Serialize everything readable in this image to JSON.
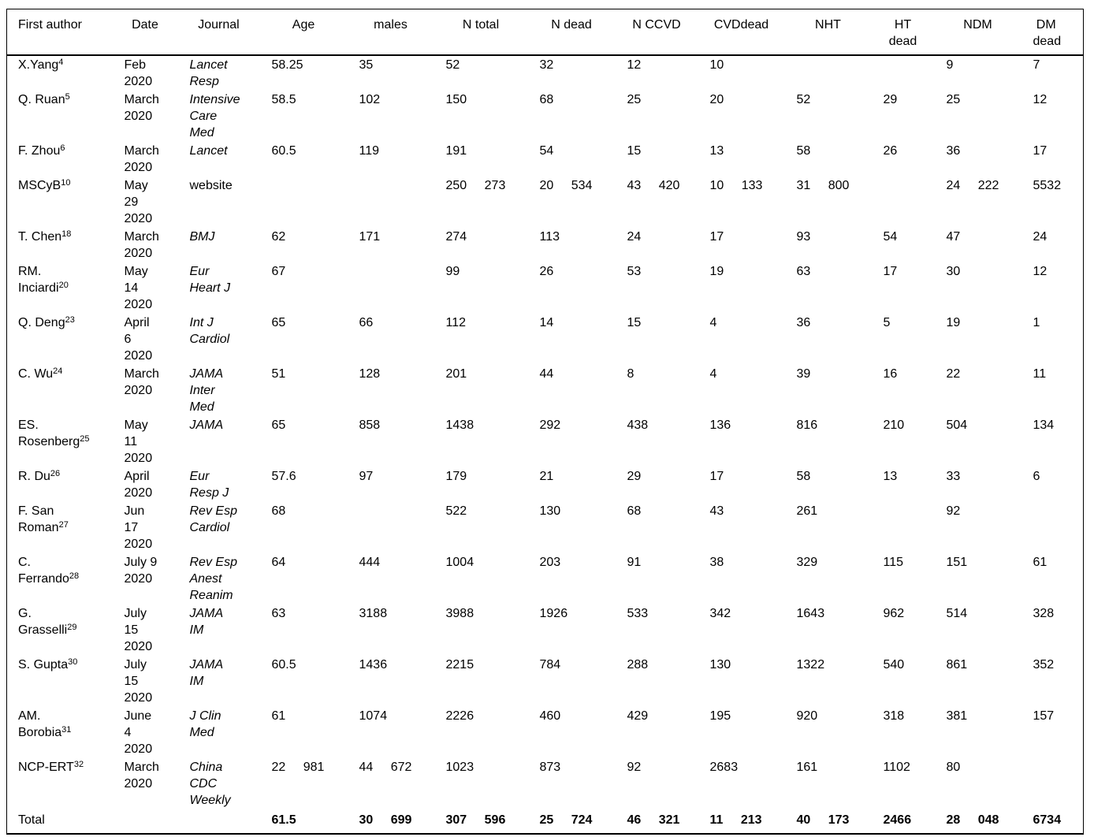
{
  "table": {
    "columns": [
      {
        "key": "author",
        "label": "First author"
      },
      {
        "key": "date",
        "label": "Date"
      },
      {
        "key": "journal",
        "label": "Journal"
      },
      {
        "key": "age",
        "label": "Age"
      },
      {
        "key": "males",
        "label": "males"
      },
      {
        "key": "n_total",
        "label": "N total"
      },
      {
        "key": "n_dead",
        "label": "N dead"
      },
      {
        "key": "n_ccvd",
        "label": "N CCVD"
      },
      {
        "key": "cvd_dead",
        "label": "CVDdead"
      },
      {
        "key": "nht",
        "label": "NHT"
      },
      {
        "key": "ht_dead",
        "label": "HT\ndead"
      },
      {
        "key": "ndm",
        "label": "NDM"
      },
      {
        "key": "dm_dead",
        "label": "DM\ndead"
      }
    ],
    "rows": [
      {
        "author": {
          "name": "X.Yang",
          "ref": "4"
        },
        "date": "Feb\n2020",
        "journal": {
          "text": "Lancet\nResp",
          "italic": true
        },
        "values": [
          "58.25",
          "35",
          "52",
          "32",
          "12",
          "10",
          "",
          "",
          "9",
          "7"
        ]
      },
      {
        "author": {
          "name": "Q. Ruan",
          "ref": "5"
        },
        "date": "March\n2020",
        "journal": {
          "text": "Intensive\nCare\nMed",
          "italic": true
        },
        "values": [
          "58.5",
          "102",
          "150",
          "68",
          "25",
          "20",
          "52",
          "29",
          "25",
          "12"
        ]
      },
      {
        "author": {
          "name": "F. Zhou",
          "ref": "6"
        },
        "date": "March\n2020",
        "journal": {
          "text": "Lancet",
          "italic": true
        },
        "values": [
          "60.5",
          "119",
          "191",
          "54",
          "15",
          "13",
          "58",
          "26",
          "36",
          "17"
        ]
      },
      {
        "author": {
          "name": "MSCyB",
          "ref": "10"
        },
        "date": "May\n29\n2020",
        "journal": {
          "text": "website",
          "italic": false
        },
        "values": [
          "",
          "",
          "250 273",
          "20 534",
          "43 420",
          "10 133",
          "31 800",
          "",
          "24 222",
          "5532"
        ]
      },
      {
        "author": {
          "name": "T. Chen",
          "ref": "18"
        },
        "date": "March\n2020",
        "journal": {
          "text": "BMJ",
          "italic": true
        },
        "values": [
          "62",
          "171",
          "274",
          "113",
          "24",
          "17",
          "93",
          "54",
          "47",
          "24"
        ]
      },
      {
        "author": {
          "name": "RM.\nInciardi",
          "ref": "20"
        },
        "date": "May\n14\n2020",
        "journal": {
          "text": "Eur\nHeart J",
          "italic": true
        },
        "values": [
          "67",
          "",
          "99",
          "26",
          "53",
          "19",
          "63",
          "17",
          "30",
          "12"
        ]
      },
      {
        "author": {
          "name": "Q. Deng",
          "ref": "23"
        },
        "date": "April\n6\n2020",
        "journal": {
          "text": "Int J\nCardiol",
          "italic": true
        },
        "values": [
          "65",
          "66",
          "112",
          "14",
          "15",
          "4",
          "36",
          "5",
          "19",
          "1"
        ]
      },
      {
        "author": {
          "name": "C. Wu",
          "ref": "24"
        },
        "date": "March\n2020",
        "journal": {
          "text": "JAMA\nInter\nMed",
          "italic": true
        },
        "values": [
          "51",
          "128",
          "201",
          "44",
          "8",
          "4",
          "39",
          "16",
          "22",
          "11"
        ]
      },
      {
        "author": {
          "name": "ES.\nRosenberg",
          "ref": "25"
        },
        "date": "May\n11\n2020",
        "journal": {
          "text": "JAMA",
          "italic": true
        },
        "values": [
          "65",
          "858",
          "1438",
          "292",
          "438",
          "136",
          "816",
          "210",
          "504",
          "134"
        ]
      },
      {
        "author": {
          "name": "R. Du",
          "ref": "26"
        },
        "date": "April\n2020",
        "journal": {
          "text": "Eur\nResp J",
          "italic": true
        },
        "values": [
          "57.6",
          "97",
          "179",
          "21",
          "29",
          "17",
          "58",
          "13",
          "33",
          "6"
        ]
      },
      {
        "author": {
          "name": "F. San\nRoman",
          "ref": "27"
        },
        "date": "Jun\n17\n2020",
        "journal": {
          "text": "Rev Esp\nCardiol",
          "italic": true
        },
        "values": [
          "68",
          "",
          "522",
          "130",
          "68",
          "43",
          "261",
          "",
          "92",
          ""
        ]
      },
      {
        "author": {
          "name": "C.\nFerrando",
          "ref": "28"
        },
        "date": "July 9\n2020",
        "journal": {
          "text": "Rev Esp\nAnest\nReanim",
          "italic": true
        },
        "values": [
          "64",
          "444",
          "1004",
          "203",
          "91",
          "38",
          "329",
          "115",
          "151",
          "61"
        ]
      },
      {
        "author": {
          "name": "G.\nGrasselli",
          "ref": "29"
        },
        "date": "July\n15\n2020",
        "journal": {
          "text": "JAMA\nIM",
          "italic": true
        },
        "values": [
          "63",
          "3188",
          "3988",
          "1926",
          "533",
          "342",
          "1643",
          "962",
          "514",
          "328"
        ]
      },
      {
        "author": {
          "name": "S. Gupta",
          "ref": "30"
        },
        "date": "July\n15\n2020",
        "journal": {
          "text": "JAMA\nIM",
          "italic": true
        },
        "values": [
          "60.5",
          "1436",
          "2215",
          "784",
          "288",
          "130",
          "1322",
          "540",
          "861",
          "352"
        ]
      },
      {
        "author": {
          "name": "AM.\nBorobia",
          "ref": "31"
        },
        "date": "June\n4\n2020",
        "journal": {
          "text": "J Clin\nMed",
          "italic": true
        },
        "values": [
          "61",
          "1074",
          "2226",
          "460",
          "429",
          "195",
          "920",
          "318",
          "381",
          "157"
        ]
      },
      {
        "author": {
          "name": "NCP-ERT",
          "ref": "32"
        },
        "date": "March\n2020",
        "journal": {
          "text": "China\nCDC\nWeekly",
          "italic": true
        },
        "values": [
          "22 981",
          "44 672",
          "1023",
          "873",
          "92",
          "2683",
          "161",
          "1102",
          "80",
          ""
        ]
      }
    ],
    "total": {
      "label": "Total",
      "values": [
        "61.5",
        "30 699",
        "307 596",
        "25 724",
        "46 321",
        "11 213",
        "40 173",
        "2466",
        "28 048",
        "6734"
      ]
    }
  }
}
